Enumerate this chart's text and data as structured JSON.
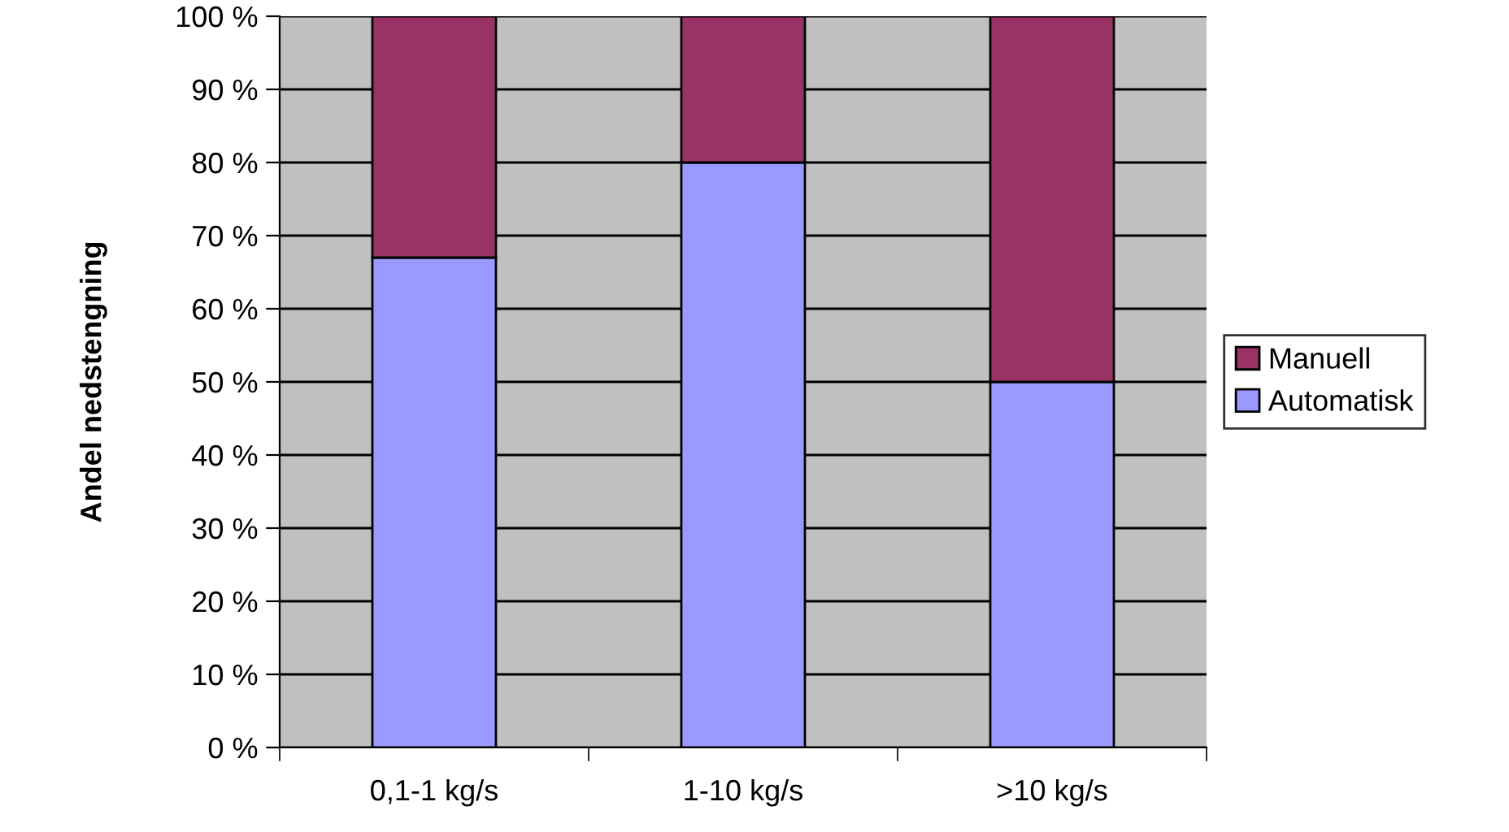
{
  "chart_data": {
    "type": "bar",
    "stacked": true,
    "ylabel": "Andel nedstengning",
    "categories": [
      "0,1-1 kg/s",
      "1-10 kg/s",
      ">10 kg/s"
    ],
    "series": [
      {
        "name": "Automatisk",
        "color": "#9999ff",
        "values": [
          67,
          80,
          50
        ]
      },
      {
        "name": "Manuell",
        "color": "#993366",
        "values": [
          33,
          20,
          50
        ]
      }
    ],
    "ylim": [
      0,
      100
    ],
    "yticks": [
      {
        "value": 0,
        "label": "0 %"
      },
      {
        "value": 10,
        "label": "10 %"
      },
      {
        "value": 20,
        "label": "20 %"
      },
      {
        "value": 30,
        "label": "30 %"
      },
      {
        "value": 40,
        "label": "40 %"
      },
      {
        "value": 50,
        "label": "50 %"
      },
      {
        "value": 60,
        "label": "60 %"
      },
      {
        "value": 70,
        "label": "70 %"
      },
      {
        "value": 80,
        "label": "80 %"
      },
      {
        "value": 90,
        "label": "90 %"
      },
      {
        "value": 100,
        "label": "100 %"
      }
    ],
    "grid": "y",
    "legend": "right"
  }
}
